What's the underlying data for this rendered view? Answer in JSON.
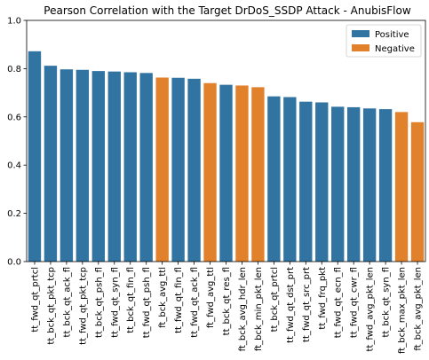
{
  "chart_data": {
    "type": "bar",
    "title": "Pearson Correlation with the Target DrDoS_SSDP Attack - AnubisFlow",
    "xlabel": "",
    "ylabel": "",
    "ylim": [
      0,
      1.0
    ],
    "yticks": [
      "0.0",
      "0.2",
      "0.4",
      "0.6",
      "0.8",
      "1.0"
    ],
    "grid": false,
    "legend_position": "top-right",
    "legend": [
      {
        "label": "Positive",
        "color": "#3274a1"
      },
      {
        "label": "Negative",
        "color": "#e1812c"
      }
    ],
    "categories": [
      "tt_fwd_qt_prtcl",
      "tt_bck_qt_pkt_tcp",
      "tt_bck_qt_ack_fl",
      "tt_fwd_qt_pkt_tcp",
      "tt_bck_qt_psh_fl",
      "tt_fwd_qt_syn_fl",
      "tt_bck_qt_fin_fl",
      "tt_fwd_qt_psh_fl",
      "ft_bck_avg_ttl",
      "tt_fwd_qt_fin_fl",
      "tt_fwd_qt_ack_fl",
      "ft_fwd_avg_ttl",
      "tt_bck_qt_res_fl",
      "ft_bck_avg_hdr_len",
      "ft_bck_min_pkt_len",
      "tt_bck_qt_prtcl",
      "tt_fwd_qt_dst_prt",
      "tt_fwd_qt_src_prt",
      "tt_fwd_frq_pkt",
      "tt_fwd_qt_ecn_fl",
      "tt_fwd_qt_cwr_fl",
      "tt_fwd_avg_pkt_len",
      "tt_bck_qt_syn_fl",
      "ft_bck_max_pkt_len",
      "ft_bck_avg_pkt_len"
    ],
    "values": [
      0.872,
      0.812,
      0.797,
      0.795,
      0.79,
      0.788,
      0.785,
      0.782,
      0.763,
      0.762,
      0.758,
      0.74,
      0.733,
      0.73,
      0.723,
      0.685,
      0.682,
      0.663,
      0.66,
      0.642,
      0.64,
      0.635,
      0.632,
      0.62,
      0.578
    ],
    "signs": [
      "Positive",
      "Positive",
      "Positive",
      "Positive",
      "Positive",
      "Positive",
      "Positive",
      "Positive",
      "Negative",
      "Positive",
      "Positive",
      "Negative",
      "Positive",
      "Negative",
      "Negative",
      "Positive",
      "Positive",
      "Positive",
      "Positive",
      "Positive",
      "Positive",
      "Positive",
      "Positive",
      "Negative",
      "Negative"
    ]
  }
}
